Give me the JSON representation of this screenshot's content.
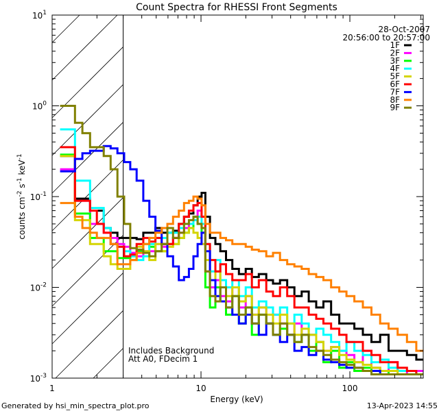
{
  "chart_data": {
    "type": "line",
    "title": "Count Spectra for RHESSI Front Segments",
    "xlabel": "Energy (keV)",
    "ylabel": {
      "base": "counts cm",
      "e1": "-2",
      "mid": " s",
      "e2": "-1",
      "mid2": " keV",
      "e3": "-1"
    },
    "xscale": "log",
    "yscale": "log",
    "xlim": [
      1,
      311
    ],
    "ylim": [
      0.001,
      10
    ],
    "x_ticks": [
      {
        "value": 1,
        "label": "1"
      },
      {
        "value": 10,
        "label": "10"
      },
      {
        "value": 100,
        "label": "100"
      }
    ],
    "y_ticks": [
      {
        "value": 10,
        "base": "10",
        "exp": "1"
      },
      {
        "value": 1,
        "base": "10",
        "exp": "0"
      },
      {
        "value": 0.1,
        "base": "10",
        "exp": "-1"
      },
      {
        "value": 0.01,
        "base": "10",
        "exp": "-2"
      },
      {
        "value": 0.001,
        "base": "10",
        "exp": "-3"
      }
    ],
    "shaded_region": {
      "from": 1,
      "to": 3,
      "style": "hatched"
    },
    "date": "28-Oct-2007",
    "time_range": "20:56:00 to 20:57:00",
    "annotations": [
      "Includes Background",
      "Att A0, FDecim 1"
    ],
    "legend_position": "top-right",
    "energy": [
      1.2,
      1.35,
      1.5,
      1.7,
      1.9,
      2.1,
      2.35,
      2.6,
      2.9,
      3.2,
      3.5,
      3.9,
      4.3,
      4.7,
      5.2,
      5.7,
      6.2,
      6.8,
      7.4,
      8.0,
      8.6,
      9.2,
      9.8,
      10.4,
      11,
      12,
      13,
      14,
      15.5,
      17,
      19,
      21,
      23,
      26,
      29,
      32,
      36,
      40,
      45,
      50,
      56,
      63,
      70,
      80,
      90,
      100,
      115,
      130,
      150,
      170,
      195,
      225,
      260,
      300
    ],
    "series": [
      {
        "name": "1F",
        "color": "#000000",
        "values": [
          0.28,
          0.28,
          0.095,
          0.095,
          0.07,
          0.07,
          0.045,
          0.04,
          0.035,
          0.035,
          0.035,
          0.034,
          0.04,
          0.04,
          0.045,
          0.04,
          0.04,
          0.042,
          0.05,
          0.06,
          0.065,
          0.08,
          0.1,
          0.11,
          0.06,
          0.035,
          0.03,
          0.025,
          0.02,
          0.016,
          0.014,
          0.016,
          0.013,
          0.014,
          0.012,
          0.011,
          0.012,
          0.01,
          0.008,
          0.009,
          0.007,
          0.006,
          0.007,
          0.005,
          0.004,
          0.004,
          0.0035,
          0.003,
          0.0025,
          0.003,
          0.002,
          0.002,
          0.0018,
          0.0016
        ]
      },
      {
        "name": "2F",
        "color": "#ff00ff",
        "values": [
          0.2,
          0.2,
          0.09,
          0.09,
          0.05,
          0.05,
          0.04,
          0.035,
          0.03,
          0.028,
          0.024,
          0.022,
          0.025,
          0.025,
          0.03,
          0.028,
          0.03,
          0.035,
          0.04,
          0.045,
          0.05,
          0.06,
          0.07,
          0.06,
          0.015,
          0.01,
          0.012,
          0.008,
          0.007,
          0.01,
          0.006,
          0.008,
          0.005,
          0.006,
          0.004,
          0.005,
          0.004,
          0.003,
          0.004,
          0.003,
          0.003,
          0.0025,
          0.002,
          0.0022,
          0.002,
          0.0018,
          0.0015,
          0.002,
          0.0013,
          0.0012,
          0.0015,
          0.0012,
          0.0011,
          0.0012
        ]
      },
      {
        "name": "3F",
        "color": "#00ff00",
        "values": [
          0.29,
          0.29,
          0.065,
          0.065,
          0.035,
          0.035,
          0.025,
          0.025,
          0.021,
          0.021,
          0.022,
          0.025,
          0.03,
          0.028,
          0.025,
          0.025,
          0.03,
          0.03,
          0.035,
          0.04,
          0.045,
          0.06,
          0.05,
          0.04,
          0.01,
          0.006,
          0.01,
          0.007,
          0.005,
          0.008,
          0.004,
          0.006,
          0.003,
          0.005,
          0.004,
          0.003,
          0.0035,
          0.003,
          0.0025,
          0.003,
          0.002,
          0.0025,
          0.0015,
          0.002,
          0.0013,
          0.0015,
          0.0012,
          0.0013,
          0.0011,
          0.0012,
          0.0011,
          0.0011,
          0.0011,
          0.0011
        ]
      },
      {
        "name": "4F",
        "color": "#00ffff",
        "values": [
          0.55,
          0.55,
          0.15,
          0.15,
          0.075,
          0.075,
          0.045,
          0.03,
          0.028,
          0.025,
          0.022,
          0.02,
          0.022,
          0.03,
          0.035,
          0.035,
          0.04,
          0.04,
          0.045,
          0.05,
          0.05,
          0.055,
          0.06,
          0.05,
          0.03,
          0.015,
          0.02,
          0.012,
          0.01,
          0.012,
          0.008,
          0.01,
          0.006,
          0.007,
          0.006,
          0.005,
          0.006,
          0.004,
          0.005,
          0.004,
          0.003,
          0.0035,
          0.003,
          0.0025,
          0.002,
          0.0025,
          0.002,
          0.0018,
          0.0015,
          0.0016,
          0.0013,
          0.0012,
          0.0012,
          0.0011
        ]
      },
      {
        "name": "5F",
        "color": "#d4d400",
        "values": [
          0.28,
          0.28,
          0.055,
          0.055,
          0.03,
          0.03,
          0.022,
          0.018,
          0.016,
          0.016,
          0.02,
          0.028,
          0.025,
          0.02,
          0.03,
          0.025,
          0.028,
          0.03,
          0.035,
          0.04,
          0.045,
          0.04,
          0.035,
          0.03,
          0.02,
          0.012,
          0.015,
          0.01,
          0.008,
          0.01,
          0.007,
          0.008,
          0.005,
          0.006,
          0.005,
          0.004,
          0.005,
          0.004,
          0.003,
          0.0035,
          0.003,
          0.0025,
          0.002,
          0.0022,
          0.0018,
          0.0016,
          0.0015,
          0.0014,
          0.0013,
          0.0012,
          0.0012,
          0.0011,
          0.0011,
          0.0011
        ]
      },
      {
        "name": "6F",
        "color": "#ff0000",
        "values": [
          0.35,
          0.35,
          0.09,
          0.09,
          0.07,
          0.05,
          0.04,
          0.03,
          0.028,
          0.022,
          0.023,
          0.03,
          0.035,
          0.032,
          0.035,
          0.03,
          0.03,
          0.035,
          0.05,
          0.06,
          0.07,
          0.08,
          0.085,
          0.06,
          0.03,
          0.02,
          0.015,
          0.018,
          0.014,
          0.012,
          0.012,
          0.014,
          0.01,
          0.012,
          0.009,
          0.008,
          0.01,
          0.008,
          0.006,
          0.006,
          0.005,
          0.0045,
          0.004,
          0.0035,
          0.003,
          0.0025,
          0.0025,
          0.002,
          0.0018,
          0.0015,
          0.0015,
          0.0013,
          0.0012,
          0.0011
        ]
      },
      {
        "name": "7F",
        "color": "#0000ff",
        "values": [
          0.19,
          0.19,
          0.26,
          0.3,
          0.32,
          0.32,
          0.36,
          0.34,
          0.3,
          0.24,
          0.2,
          0.15,
          0.09,
          0.06,
          0.042,
          0.03,
          0.022,
          0.017,
          0.012,
          0.013,
          0.016,
          0.022,
          0.03,
          0.04,
          0.025,
          0.012,
          0.008,
          0.007,
          0.006,
          0.005,
          0.004,
          0.005,
          0.004,
          0.003,
          0.004,
          0.003,
          0.0025,
          0.003,
          0.002,
          0.0022,
          0.0018,
          0.002,
          0.0016,
          0.0015,
          0.0014,
          0.0013,
          0.0013,
          0.0012,
          0.0012,
          0.0011,
          0.0011,
          0.0011,
          0.0011,
          0.0011
        ]
      },
      {
        "name": "8F",
        "color": "#ff8000",
        "values": [
          0.085,
          0.085,
          0.06,
          0.045,
          0.04,
          0.035,
          0.035,
          0.03,
          0.018,
          0.018,
          0.02,
          0.024,
          0.03,
          0.035,
          0.04,
          0.045,
          0.05,
          0.06,
          0.07,
          0.085,
          0.09,
          0.1,
          0.095,
          0.08,
          0.05,
          0.04,
          0.04,
          0.035,
          0.033,
          0.03,
          0.03,
          0.028,
          0.026,
          0.025,
          0.022,
          0.024,
          0.02,
          0.018,
          0.017,
          0.016,
          0.014,
          0.013,
          0.012,
          0.01,
          0.009,
          0.008,
          0.007,
          0.006,
          0.005,
          0.004,
          0.0035,
          0.003,
          0.0025,
          0.002
        ]
      },
      {
        "name": "9F",
        "color": "#808000",
        "values": [
          1.0,
          1.0,
          0.65,
          0.5,
          0.35,
          0.35,
          0.28,
          0.2,
          0.1,
          0.05,
          0.027,
          0.026,
          0.024,
          0.022,
          0.025,
          0.03,
          0.045,
          0.035,
          0.04,
          0.05,
          0.055,
          0.06,
          0.05,
          0.045,
          0.015,
          0.008,
          0.007,
          0.01,
          0.006,
          0.008,
          0.005,
          0.006,
          0.004,
          0.005,
          0.004,
          0.003,
          0.004,
          0.003,
          0.0025,
          0.003,
          0.0022,
          0.002,
          0.0018,
          0.0016,
          0.0015,
          0.0014,
          0.0013,
          0.0012,
          0.0011,
          0.0011,
          0.0011,
          0.0011,
          0.0011,
          0.0011
        ]
      }
    ]
  },
  "footer": {
    "generated_by": "Generated by hsi_min_spectra_plot.pro",
    "timestamp": "13-Apr-2023 14:55"
  }
}
